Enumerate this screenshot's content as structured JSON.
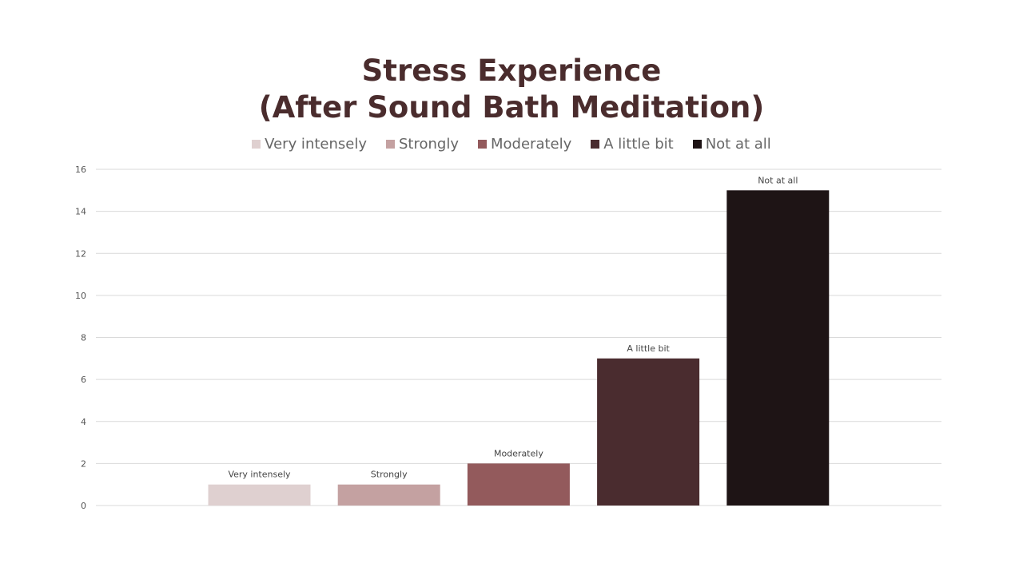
{
  "chart_data": {
    "type": "bar",
    "title_lines": [
      "Stress Experience",
      "(After Sound Bath Meditation)"
    ],
    "categories": [
      "Very intensely",
      "Strongly",
      "Moderately",
      "A little bit",
      "Not at all"
    ],
    "values": [
      1,
      1,
      2,
      7,
      15
    ],
    "colors": [
      "#dfd0d0",
      "#c4a1a1",
      "#935a5c",
      "#4a2c2f",
      "#1e1415"
    ],
    "ylim": [
      0,
      16
    ],
    "yticks": [
      0,
      2,
      4,
      6,
      8,
      10,
      12,
      14,
      16
    ],
    "grid": true,
    "legend_position": "top",
    "xlabel": "",
    "ylabel": ""
  }
}
